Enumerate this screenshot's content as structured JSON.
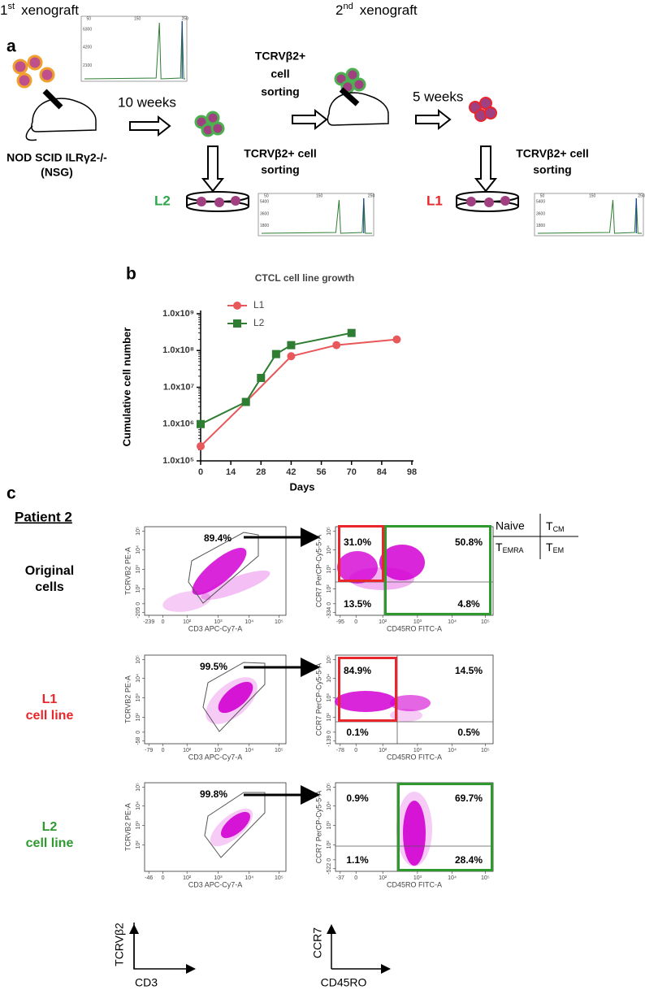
{
  "panel_a": {
    "label": "a",
    "first": {
      "num": "1",
      "sup": "st",
      "text": "xenograft"
    },
    "second": {
      "num": "2",
      "sup": "nd",
      "text": "xenograft"
    },
    "strain": [
      "NOD SCID ILRγ2-/-",
      "(NSG)"
    ],
    "time_1": "10 weeks",
    "time_2": "5 weeks",
    "sort_top": [
      "TCRVβ2+",
      "cell",
      "sorting"
    ],
    "sort_l2": [
      "TCRVβ2+ cell",
      "sorting"
    ],
    "sort_l1": [
      "TCRVβ2+ cell",
      "sorting"
    ],
    "line_l2": "L2",
    "line_l1": "L1",
    "spectra": [
      {
        "xticks": [
          "50",
          "150",
          "250"
        ],
        "yticks": [
          "6300",
          "4200",
          "2100"
        ]
      },
      {
        "xticks": [
          "50",
          "150",
          "250"
        ],
        "yticks": [
          "5400",
          "3600",
          "1800"
        ]
      },
      {
        "xticks": [
          "50",
          "150",
          "250"
        ],
        "yticks": [
          "5400",
          "3600",
          "1800"
        ]
      }
    ]
  },
  "chart_data": {
    "type": "line",
    "panel": "b",
    "title": "CTCL cell line growth",
    "x_label": "Days",
    "y_label": "Cumulative cell number",
    "log_y": true,
    "xlim": [
      0,
      98
    ],
    "xticks": [
      0,
      14,
      28,
      42,
      56,
      70,
      84,
      98
    ],
    "ylim": [
      100000,
      1000000000
    ],
    "yticks": [
      {
        "value": 100000,
        "label": "1.0x10⁵"
      },
      {
        "value": 1000000,
        "label": "1.0x10⁶"
      },
      {
        "value": 10000000,
        "label": "1.0x10⁷"
      },
      {
        "value": 100000000,
        "label": "1.0x10⁸"
      },
      {
        "value": 1000000000,
        "label": "1.0x10⁹"
      }
    ],
    "series": [
      {
        "name": "L1",
        "color": "#e8575a",
        "marker": "circle",
        "x": [
          0,
          21,
          42,
          63,
          91
        ],
        "values": [
          250000,
          4000000,
          70000000,
          140000000,
          200000000
        ]
      },
      {
        "name": "L2",
        "color": "#2e7d32",
        "marker": "square",
        "x": [
          0,
          21,
          28,
          35,
          42,
          70
        ],
        "values": [
          1000000,
          4000000,
          18000000,
          80000000,
          140000000,
          300000000
        ]
      }
    ]
  },
  "panel_c": {
    "label": "c",
    "patient": "Patient 2",
    "key": {
      "naive": "Naive",
      "t": "T",
      "cm": "CM",
      "emra": "EMRA",
      "em": "EM"
    },
    "axes_key": {
      "y_left": "TCRVβ2",
      "x_left": "CD3",
      "y_right": "CCR7",
      "x_right": "CD45RO"
    },
    "rows": [
      {
        "label": [
          "Original",
          "cells"
        ],
        "color": "#000000",
        "left": {
          "percent": "89.4%",
          "y_label": "TCRVB2 PE-A",
          "x_label": "CD3 APC-Cy7-A",
          "yticks": [
            "-205",
            "0",
            "10²",
            "10³",
            "10⁴",
            "10⁵"
          ],
          "xticks": [
            "-239",
            "0",
            "10²",
            "10³",
            "10⁴",
            "10⁵"
          ]
        },
        "right": {
          "percents": [
            "31.0%",
            "50.8%",
            "13.5%",
            "4.8%"
          ],
          "y_label": "CCR7 PerCP-Cy5-5-A",
          "x_label": "CD45RO FITC-A",
          "yticks": [
            "-334",
            "0",
            "10²",
            "10³",
            "10⁴",
            "10⁵"
          ],
          "xticks": [
            "-95",
            "0",
            "10²",
            "10³",
            "10⁴",
            "10⁵"
          ]
        }
      },
      {
        "label": [
          "L1",
          "cell line"
        ],
        "color": "#e8262b",
        "left": {
          "percent": "99.5%",
          "y_label": "TCRVB2 PE-A",
          "x_label": "CD3 APC-Cy7-A",
          "yticks": [
            "-58",
            "0",
            "10²",
            "10³",
            "10⁴",
            "10⁵"
          ],
          "xticks": [
            "-79",
            "0",
            "10²",
            "10³",
            "10⁴",
            "10⁵"
          ]
        },
        "right": {
          "percents": [
            "84.9%",
            "14.5%",
            "0.1%",
            "0.5%"
          ],
          "y_label": "CCR7 PerCP-Cy5-5-A",
          "x_label": "CD45RO FITC-A",
          "yticks": [
            "-139",
            "0",
            "10²",
            "10³",
            "10⁴",
            "10⁵"
          ],
          "xticks": [
            "-78",
            "0",
            "10²",
            "10³",
            "10⁴",
            "10⁵"
          ]
        }
      },
      {
        "label": [
          "L2",
          "cell line"
        ],
        "color": "#2e9a2e",
        "left": {
          "percent": "99.8%",
          "y_label": "TCRVB2 PE-A",
          "x_label": "CD3 APC-Cy7-A",
          "yticks": [
            "10²",
            "10³",
            "10⁴",
            "10⁵"
          ],
          "xticks": [
            "-46",
            "0",
            "10²",
            "10³",
            "10⁴",
            "10⁵"
          ]
        },
        "right": {
          "percents": [
            "0.9%",
            "69.7%",
            "1.1%",
            "28.4%"
          ],
          "y_label": "CCR7 PerCP-Cy5-5-A",
          "x_label": "CD45RO FITC-A",
          "yticks": [
            "-522",
            "0",
            "10²",
            "10³",
            "10⁴",
            "10⁵"
          ],
          "xticks": [
            "-37",
            "0",
            "10²",
            "10³",
            "10⁴",
            "10⁵"
          ]
        }
      }
    ]
  }
}
